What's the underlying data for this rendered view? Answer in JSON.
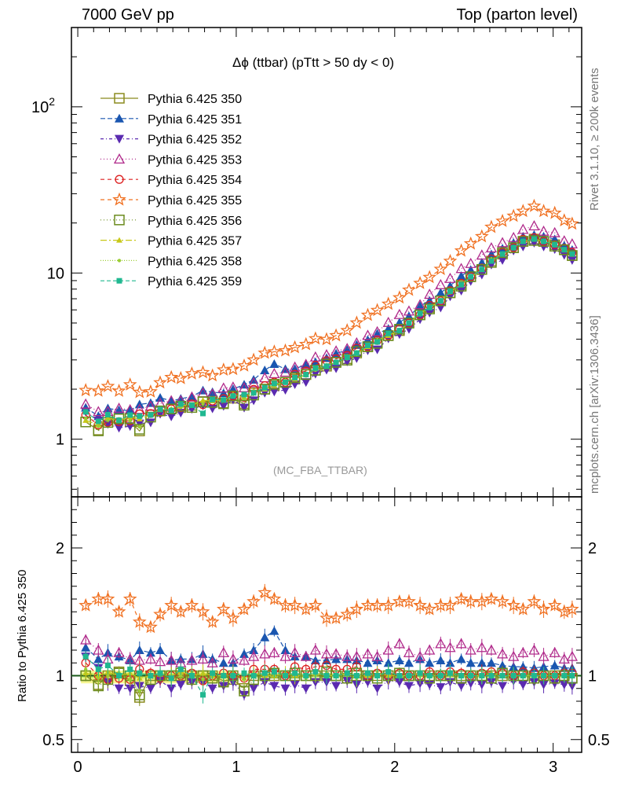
{
  "header": {
    "left": "7000 GeV pp",
    "right": "Top (parton level)"
  },
  "side_labels": {
    "rivet": "Rivet 3.1.10, ≥ 200k events",
    "mcplots": "mcplots.cern.ch [arXiv:1306.3436]"
  },
  "plot": {
    "title_symbol": "Δϕ",
    "title_text": " (ttbar) (pTtt > 50 dy < 0)",
    "analysis_tag": "(MC_FBA_TTBAR)",
    "ratio_ylabel": "Ratio to Pythia 6.425 350"
  },
  "chart_data": {
    "type": "line",
    "main_yscale": "log",
    "main_ylim": [
      0.45,
      300
    ],
    "ratio_ylim": [
      0.4,
      2.4
    ],
    "xlim": [
      -0.04,
      3.18
    ],
    "x_ticks": [
      "0",
      "1",
      "2",
      "3"
    ],
    "main_y_ticks": [
      "1",
      "10",
      "10^2"
    ],
    "ratio_y_ticks": [
      "0.5",
      "1",
      "2"
    ],
    "legend_placement": "top-left",
    "x": [
      0.05,
      0.13,
      0.19,
      0.26,
      0.33,
      0.39,
      0.46,
      0.52,
      0.59,
      0.65,
      0.72,
      0.79,
      0.85,
      0.92,
      0.98,
      1.05,
      1.11,
      1.18,
      1.24,
      1.31,
      1.37,
      1.44,
      1.5,
      1.57,
      1.63,
      1.7,
      1.76,
      1.83,
      1.89,
      1.96,
      2.03,
      2.09,
      2.16,
      2.22,
      2.29,
      2.35,
      2.42,
      2.48,
      2.55,
      2.61,
      2.68,
      2.75,
      2.81,
      2.88,
      2.94,
      3.01,
      3.07,
      3.12
    ],
    "reference": [
      1.27,
      1.22,
      1.3,
      1.3,
      1.33,
      1.35,
      1.4,
      1.48,
      1.52,
      1.55,
      1.6,
      1.68,
      1.7,
      1.72,
      1.82,
      1.82,
      1.9,
      2.0,
      2.1,
      2.2,
      2.3,
      2.45,
      2.6,
      2.75,
      2.9,
      3.05,
      3.3,
      3.6,
      3.85,
      4.2,
      4.5,
      5.0,
      5.6,
      6.2,
      6.8,
      7.6,
      8.5,
      9.5,
      10.5,
      11.8,
      13.0,
      14.2,
      15.5,
      16.0,
      15.5,
      14.8,
      13.8,
      13.0
    ],
    "series": [
      {
        "name": "Pythia 6.425 350",
        "color": "#8b8b1e",
        "marker": "square-open",
        "dash": "",
        "ratio": [
          1.0,
          0.93,
          1.0,
          1.03,
          0.96,
          0.83,
          1.0,
          1.0,
          1.0,
          1.0,
          1.0,
          1.0,
          1.0,
          0.96,
          0.97,
          0.9,
          1.0,
          1.0,
          1.0,
          1.0,
          1.0,
          1.0,
          1.0,
          1.0,
          1.0,
          1.0,
          1.0,
          1.0,
          1.0,
          1.0,
          1.0,
          1.0,
          1.0,
          1.0,
          1.0,
          1.0,
          1.0,
          1.0,
          1.0,
          1.0,
          1.0,
          1.0,
          1.0,
          1.0,
          1.0,
          1.0,
          1.0,
          0.98
        ]
      },
      {
        "name": "Pythia 6.425 351",
        "color": "#1a56b0",
        "marker": "triangle-up",
        "dash": "6,3",
        "ratio": [
          1.22,
          1.13,
          1.18,
          1.15,
          1.12,
          1.2,
          1.18,
          1.2,
          1.12,
          1.13,
          1.13,
          1.17,
          1.13,
          1.1,
          1.1,
          1.17,
          1.2,
          1.3,
          1.35,
          1.2,
          1.15,
          1.15,
          1.12,
          1.12,
          1.13,
          1.13,
          1.12,
          1.1,
          1.12,
          1.1,
          1.12,
          1.1,
          1.13,
          1.1,
          1.12,
          1.1,
          1.13,
          1.1,
          1.1,
          1.1,
          1.08,
          1.07,
          1.07,
          1.06,
          1.07,
          1.08,
          1.06,
          1.06
        ]
      },
      {
        "name": "Pythia 6.425 352",
        "color": "#5a2ab0",
        "marker": "triangle-down",
        "dash": "4,3,1,3",
        "ratio": [
          1.15,
          1.06,
          0.95,
          0.9,
          0.9,
          0.92,
          0.9,
          0.96,
          0.9,
          0.93,
          0.95,
          0.95,
          0.9,
          0.92,
          0.95,
          0.85,
          0.9,
          0.95,
          0.92,
          0.9,
          0.93,
          0.9,
          0.95,
          0.95,
          0.92,
          0.96,
          0.93,
          0.95,
          0.9,
          0.96,
          0.95,
          0.92,
          0.94,
          0.93,
          0.91,
          0.95,
          0.92,
          0.94,
          0.93,
          0.95,
          0.92,
          0.96,
          0.93,
          0.95,
          0.93,
          0.94,
          0.93,
          0.92
        ]
      },
      {
        "name": "Pythia 6.425 353",
        "color": "#b02a8b",
        "marker": "triangle-open",
        "dash": "1,3",
        "ratio": [
          1.28,
          1.2,
          1.13,
          1.18,
          1.13,
          1.12,
          1.13,
          1.11,
          1.12,
          1.1,
          1.12,
          1.13,
          1.1,
          1.18,
          1.13,
          1.12,
          1.15,
          1.17,
          1.18,
          1.15,
          1.18,
          1.15,
          1.2,
          1.17,
          1.17,
          1.15,
          1.15,
          1.17,
          1.15,
          1.2,
          1.25,
          1.18,
          1.15,
          1.2,
          1.25,
          1.22,
          1.25,
          1.2,
          1.22,
          1.2,
          1.17,
          1.15,
          1.18,
          1.2,
          1.15,
          1.18,
          1.13,
          1.15
        ]
      },
      {
        "name": "Pythia 6.425 354",
        "color": "#dd2020",
        "marker": "circle-open",
        "dash": "5,4",
        "ratio": [
          1.1,
          1.0,
          0.97,
          0.98,
          0.97,
          1.05,
          1.02,
          0.98,
          1.0,
          1.0,
          1.02,
          0.96,
          1.0,
          1.02,
          1.0,
          0.98,
          1.05,
          1.05,
          1.05,
          1.0,
          1.07,
          1.05,
          1.07,
          1.08,
          1.05,
          1.05,
          1.07,
          1.0,
          1.02,
          1.0,
          1.02,
          1.0,
          1.0,
          1.03,
          1.0,
          1.03,
          1.02,
          1.0,
          1.02,
          1.03,
          1.02,
          1.0,
          1.03,
          1.02,
          1.0,
          1.0,
          1.02,
          1.02
        ]
      },
      {
        "name": "Pythia 6.425 355",
        "color": "#f07020",
        "marker": "star-open",
        "dash": "5,4",
        "ratio": [
          1.55,
          1.6,
          1.6,
          1.5,
          1.6,
          1.42,
          1.38,
          1.48,
          1.55,
          1.5,
          1.55,
          1.5,
          1.42,
          1.52,
          1.45,
          1.52,
          1.58,
          1.65,
          1.6,
          1.55,
          1.55,
          1.52,
          1.55,
          1.45,
          1.45,
          1.48,
          1.52,
          1.55,
          1.55,
          1.55,
          1.58,
          1.58,
          1.55,
          1.52,
          1.55,
          1.55,
          1.6,
          1.58,
          1.58,
          1.6,
          1.58,
          1.55,
          1.52,
          1.58,
          1.52,
          1.55,
          1.5,
          1.52
        ]
      },
      {
        "name": "Pythia 6.425 356",
        "color": "#6b8b1e",
        "marker": "square-open",
        "dash": "1,3",
        "ratio": [
          1.0,
          0.92,
          0.97,
          1.02,
          1.0,
          0.85,
          0.97,
          1.0,
          1.0,
          1.02,
          0.97,
          1.0,
          0.98,
          0.95,
          1.0,
          0.88,
          0.97,
          1.0,
          1.02,
          1.0,
          1.02,
          1.0,
          1.0,
          1.03,
          1.0,
          0.98,
          1.02,
          1.0,
          0.98,
          1.0,
          1.02,
          1.0,
          1.0,
          0.98,
          1.0,
          1.0,
          0.98,
          1.0,
          1.0,
          0.98,
          1.02,
          1.0,
          1.0,
          0.98,
          1.0,
          0.98,
          1.0,
          0.98
        ]
      },
      {
        "name": "Pythia 6.425 357",
        "color": "#c8c818",
        "marker": "triangle-up-small",
        "dash": "8,3,2,3",
        "ratio": [
          1.02,
          1.0,
          1.03,
          1.0,
          1.02,
          0.98,
          1.0,
          1.02,
          1.0,
          1.03,
          1.0,
          1.02,
          1.0,
          1.0,
          1.02,
          0.98,
          1.02,
          1.0,
          1.0,
          1.02,
          1.0,
          1.0,
          1.02,
          1.0,
          1.0,
          1.02,
          1.0,
          1.0,
          1.02,
          1.0,
          1.0,
          1.0,
          1.02,
          1.0,
          1.0,
          1.02,
          1.0,
          1.0,
          1.0,
          1.02,
          1.0,
          1.0,
          1.0,
          1.0,
          1.0,
          1.0,
          1.0,
          1.0
        ]
      },
      {
        "name": "Pythia 6.425 358",
        "color": "#9acd32",
        "marker": "dot",
        "dash": "1,2",
        "ratio": [
          1.05,
          0.98,
          1.0,
          1.02,
          0.97,
          0.88,
          1.0,
          1.02,
          0.98,
          1.0,
          1.02,
          0.97,
          1.0,
          1.0,
          1.0,
          0.97,
          1.0,
          1.02,
          1.0,
          1.0,
          1.02,
          0.98,
          1.0,
          1.02,
          1.0,
          1.0,
          0.98,
          1.0,
          1.0,
          1.02,
          1.0,
          1.0,
          1.0,
          1.0,
          1.0,
          1.0,
          1.0,
          1.0,
          1.0,
          1.0,
          1.0,
          1.0,
          1.0,
          1.0,
          1.0,
          1.0,
          1.0,
          1.0
        ]
      },
      {
        "name": "Pythia 6.425 359",
        "color": "#20b890",
        "marker": "square-small",
        "dash": "5,3",
        "ratio": [
          1.15,
          1.05,
          1.08,
          1.0,
          1.05,
          1.02,
          1.0,
          1.02,
          0.98,
          1.05,
          1.0,
          0.85,
          1.02,
          1.0,
          1.0,
          1.02,
          1.0,
          1.02,
          1.03,
          1.0,
          1.02,
          1.0,
          1.03,
          1.0,
          1.0,
          1.02,
          1.0,
          1.02,
          1.0,
          1.03,
          1.0,
          1.0,
          1.02,
          1.0,
          1.0,
          1.02,
          1.0,
          1.0,
          1.0,
          1.0,
          1.0,
          1.0,
          1.0,
          1.0,
          1.0,
          1.0,
          1.0,
          1.0
        ]
      }
    ]
  }
}
